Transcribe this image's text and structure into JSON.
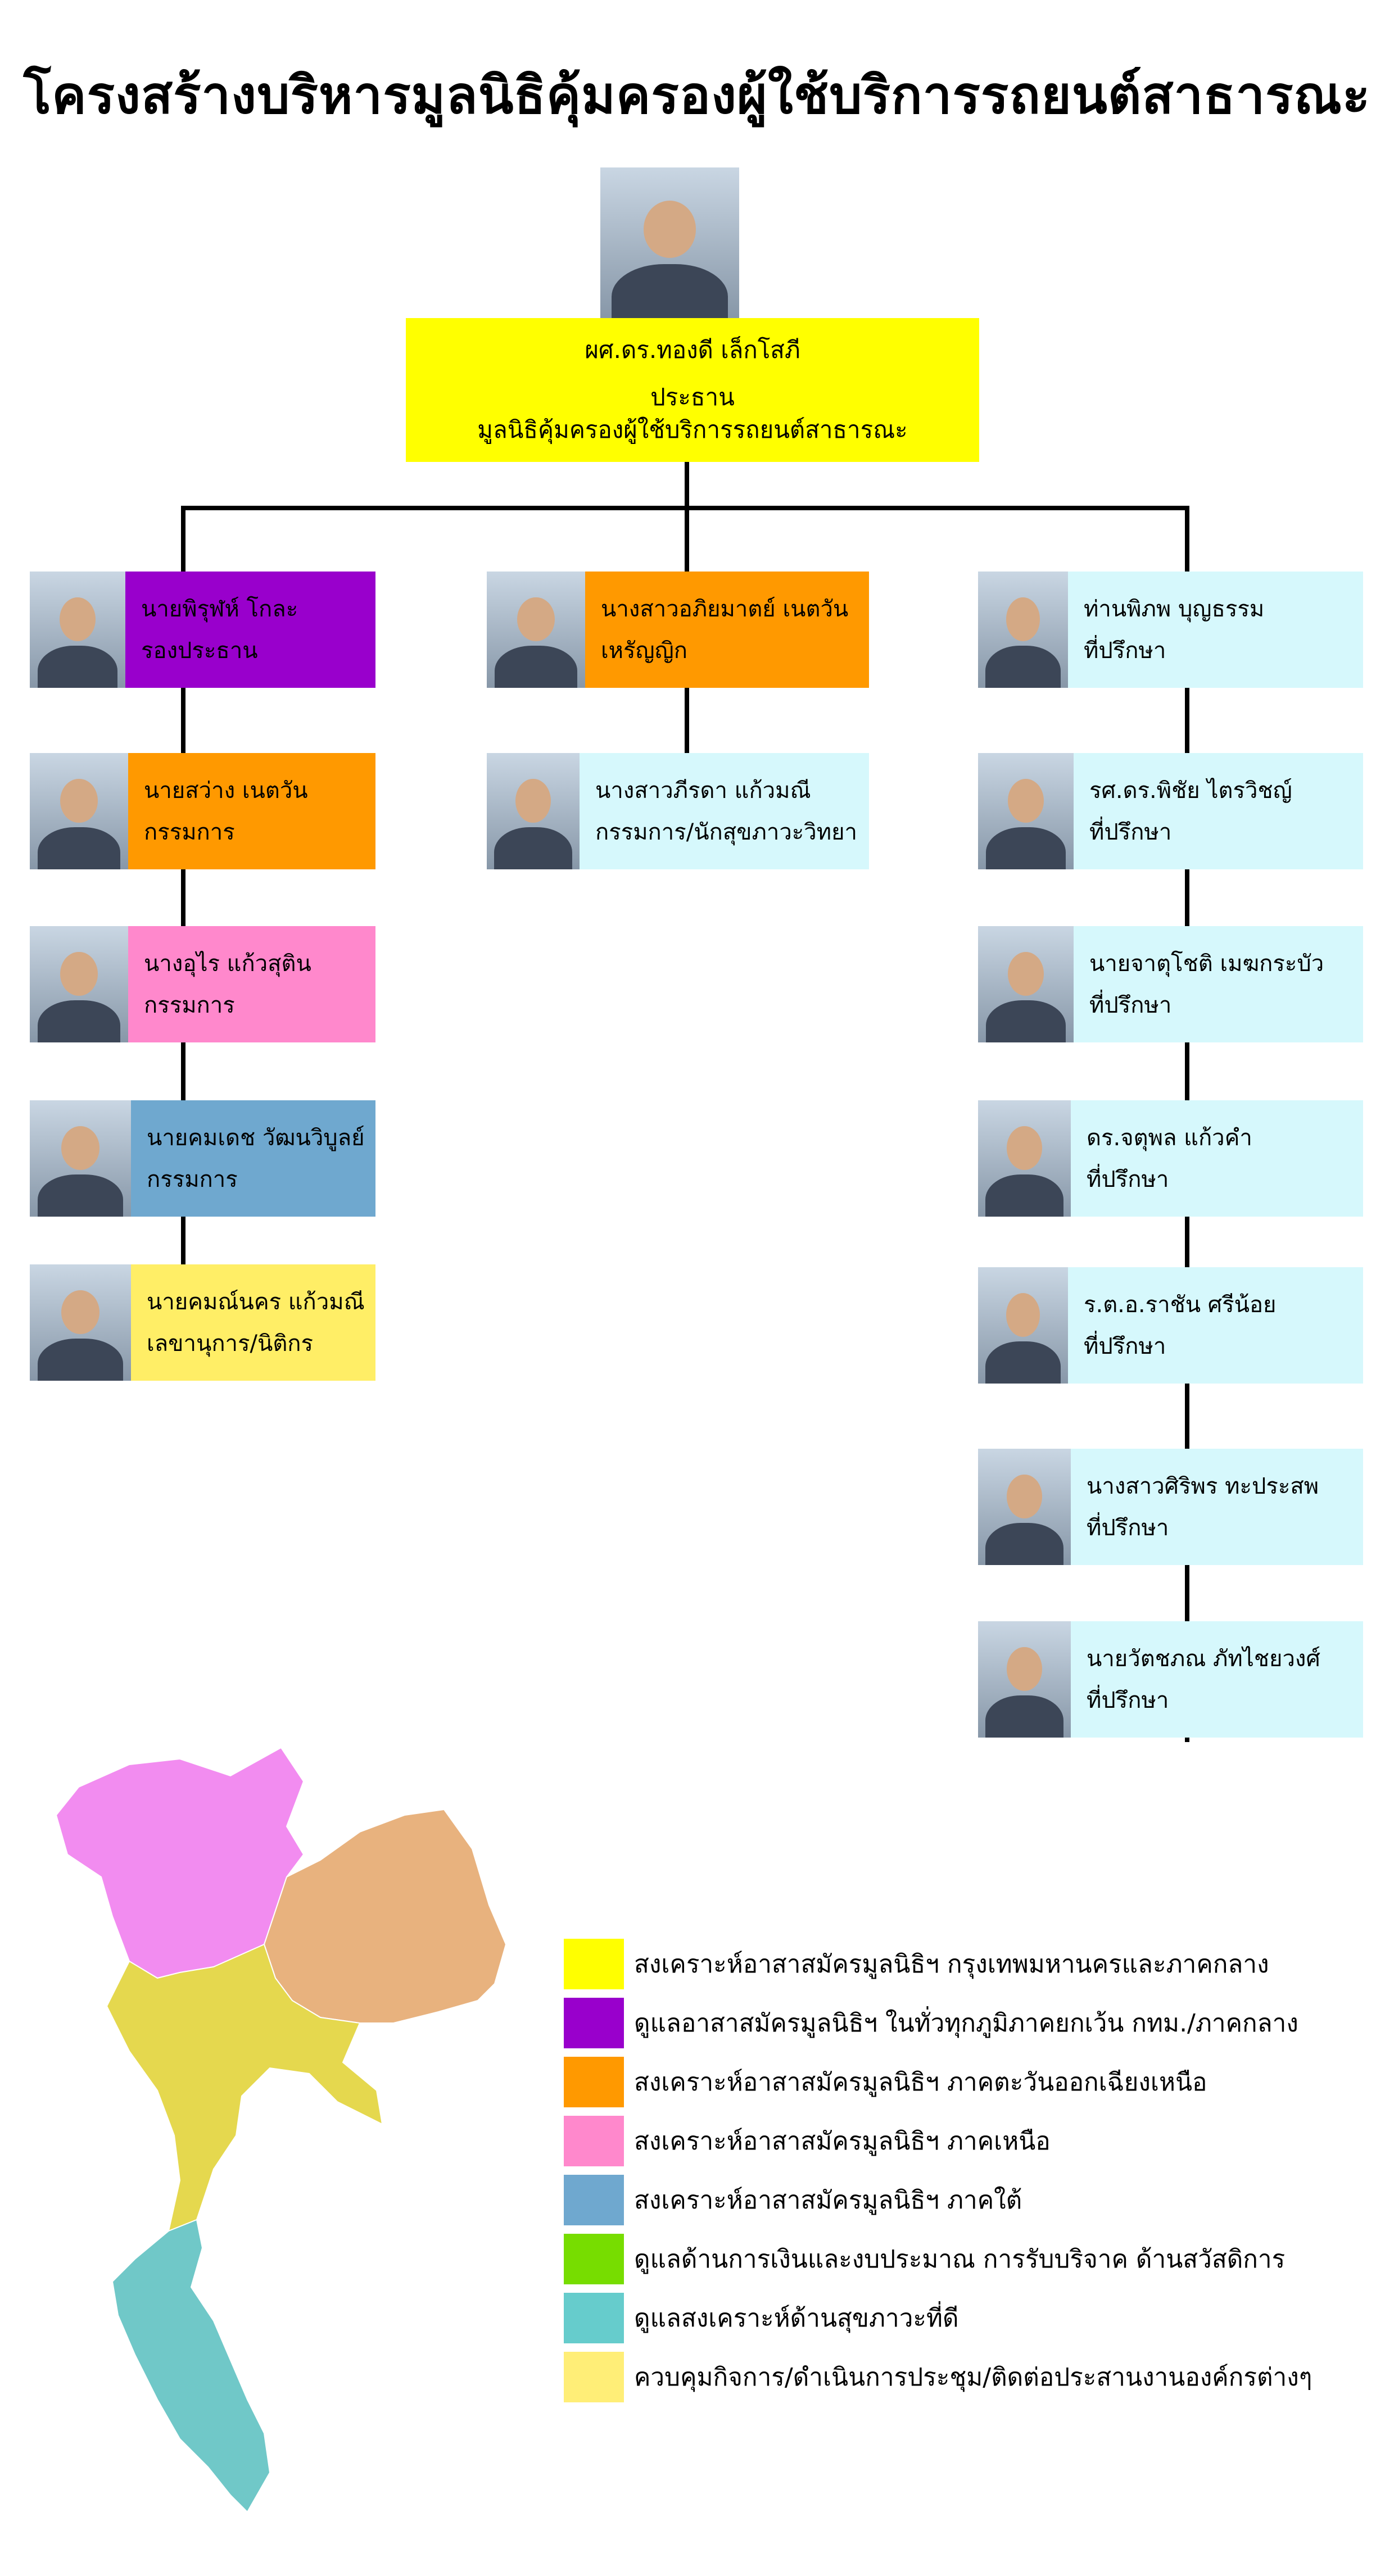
{
  "title": "โครงสร้างบริหารมูลนิธิคุ้มครองผู้ใช้บริการรถยนต์สาธารณะ",
  "chairman": {
    "name": "ผศ.ดร.ทองดี เล็กโสภี",
    "role": "ประธาน",
    "org": "มูลนิธิคุ้มครองผู้ใช้บริการรถยนต์สาธารณะ",
    "color": "#FFFF00"
  },
  "left_column": [
    {
      "name": "นายพิรุฬห์ โกละ",
      "role": "รองประธาน",
      "color": "#9900CC"
    },
    {
      "name": "นายสว่าง เนตวัน",
      "role": "กรรมการ",
      "color": "#FF9900"
    },
    {
      "name": "นางอุไร แก้วสุติน",
      "role": "กรรมการ",
      "color": "#FF88CC"
    },
    {
      "name": "นายคมเดช วัฒนวิบูลย์",
      "role": "กรรมการ",
      "color": "#6FA8CF"
    },
    {
      "name": "นายคมณ์นคร แก้วมณี",
      "role": "เลขานุการ/นิติกร",
      "color": "#FFEE66"
    }
  ],
  "middle_column": [
    {
      "name": "นางสาวอภิยมาตย์ เนตวัน",
      "role": "เหรัญญิก",
      "color": "#FF9900"
    },
    {
      "name": "นางสาวภีรดา แก้วมณี",
      "role": "กรรมการ/นักสุขภาวะวิทยา",
      "color": "#D6F8FC"
    }
  ],
  "right_column": [
    {
      "name": "ท่านพิภพ บุญธรรม",
      "role": "ที่ปรึกษา",
      "color": "#D6F8FC"
    },
    {
      "name": "รศ.ดร.พิชัย ไตรวิชญ์",
      "role": "ที่ปรึกษา",
      "color": "#D6F8FC"
    },
    {
      "name": "นายจาตุโชติ เมฆกระบัว",
      "role": "ที่ปรึกษา",
      "color": "#D6F8FC"
    },
    {
      "name": "ดร.จตุพล แก้วคำ",
      "role": "ที่ปรึกษา",
      "color": "#D6F8FC"
    },
    {
      "name": "ร.ต.อ.ราชัน ศรีน้อย",
      "role": "ที่ปรึกษา",
      "color": "#D6F8FC"
    },
    {
      "name": "นางสาวศิริพร ทะประสพ",
      "role": "ที่ปรึกษา",
      "color": "#D6F8FC"
    },
    {
      "name": "นายวัตชภณ ภัทไชยวงศ์",
      "role": "ที่ปรึกษา",
      "color": "#D6F8FC"
    }
  ],
  "legend": [
    {
      "color": "#FFFF00",
      "text": "สงเคราะห์อาสาสมัครมูลนิธิฯ กรุงเทพมหานครและภาคกลาง"
    },
    {
      "color": "#9900CC",
      "text": "ดูแลอาสาสมัครมูลนิธิฯ ในทั่วทุกภูมิภาคยกเว้น กทม./ภาคกลาง"
    },
    {
      "color": "#FF9900",
      "text": "สงเคราะห์อาสาสมัครมูลนิธิฯ ภาคตะวันออกเฉียงเหนือ"
    },
    {
      "color": "#FF88CC",
      "text": "สงเคราะห์อาสาสมัครมูลนิธิฯ ภาคเหนือ"
    },
    {
      "color": "#6FA8CF",
      "text": "สงเคราะห์อาสาสมัครมูลนิธิฯ ภาคใต้"
    },
    {
      "color": "#77DD00",
      "text": "ดูแลด้านการเงินและงบประมาณ การรับบริจาค ด้านสวัสดิการ"
    },
    {
      "color": "#66CCCC",
      "text": "ดูแลสงเคราะห์ด้านสุขภาวะที่ดี"
    },
    {
      "color": "#FFEE77",
      "text": "ควบคุมกิจการ/ดำเนินการประชุม/ติดต่อประสานงานองค์กรต่างๆ"
    }
  ],
  "map_regions": {
    "north": "#F28CF0",
    "northeast": "#E8B27E",
    "central": "#E5D84E",
    "south": "#70C8C8"
  }
}
